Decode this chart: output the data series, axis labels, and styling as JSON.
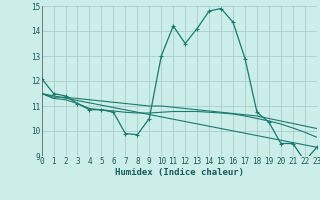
{
  "title": "",
  "xlabel": "Humidex (Indice chaleur)",
  "bg_color": "#cceee8",
  "grid_color": "#aacccc",
  "line_color": "#1a7a6e",
  "xmin": 0,
  "xmax": 23,
  "ymin": 9,
  "ymax": 15,
  "yticks": [
    9,
    10,
    11,
    12,
    13,
    14,
    15
  ],
  "xticks": [
    0,
    1,
    2,
    3,
    4,
    5,
    6,
    7,
    8,
    9,
    10,
    11,
    12,
    13,
    14,
    15,
    16,
    17,
    18,
    19,
    20,
    21,
    22,
    23
  ],
  "line1_x": [
    0,
    1,
    2,
    3,
    4,
    5,
    6,
    7,
    8,
    9,
    10,
    11,
    12,
    13,
    14,
    15,
    16,
    17,
    18,
    19,
    20,
    21,
    22,
    23
  ],
  "line1_y": [
    12.1,
    11.5,
    11.4,
    11.1,
    10.85,
    10.85,
    10.75,
    9.9,
    9.85,
    10.5,
    13.0,
    14.2,
    13.5,
    14.1,
    14.8,
    14.9,
    14.35,
    12.9,
    10.75,
    10.35,
    9.5,
    9.5,
    8.8,
    9.35
  ],
  "line2_x": [
    0,
    1,
    2,
    3,
    4,
    5,
    6,
    7,
    8,
    9,
    10,
    11,
    12,
    13,
    14,
    15,
    16,
    17,
    18,
    19,
    20,
    21,
    22,
    23
  ],
  "line2_y": [
    11.5,
    11.35,
    11.35,
    11.3,
    11.25,
    11.2,
    11.15,
    11.1,
    11.05,
    11.0,
    11.0,
    10.95,
    10.9,
    10.85,
    10.8,
    10.75,
    10.7,
    10.65,
    10.6,
    10.5,
    10.4,
    10.3,
    10.2,
    10.1
  ],
  "line3_x": [
    0,
    1,
    2,
    3,
    4,
    5,
    6,
    7,
    8,
    9,
    10,
    11,
    12,
    13,
    14,
    15,
    16,
    17,
    18,
    19,
    20,
    21,
    22,
    23
  ],
  "line3_y": [
    11.5,
    11.3,
    11.25,
    11.1,
    10.9,
    10.85,
    10.8,
    10.75,
    10.72,
    10.72,
    10.75,
    10.78,
    10.78,
    10.78,
    10.75,
    10.72,
    10.68,
    10.6,
    10.5,
    10.4,
    10.28,
    10.12,
    9.95,
    9.75
  ],
  "line4_x": [
    0,
    23
  ],
  "line4_y": [
    11.5,
    9.35
  ]
}
